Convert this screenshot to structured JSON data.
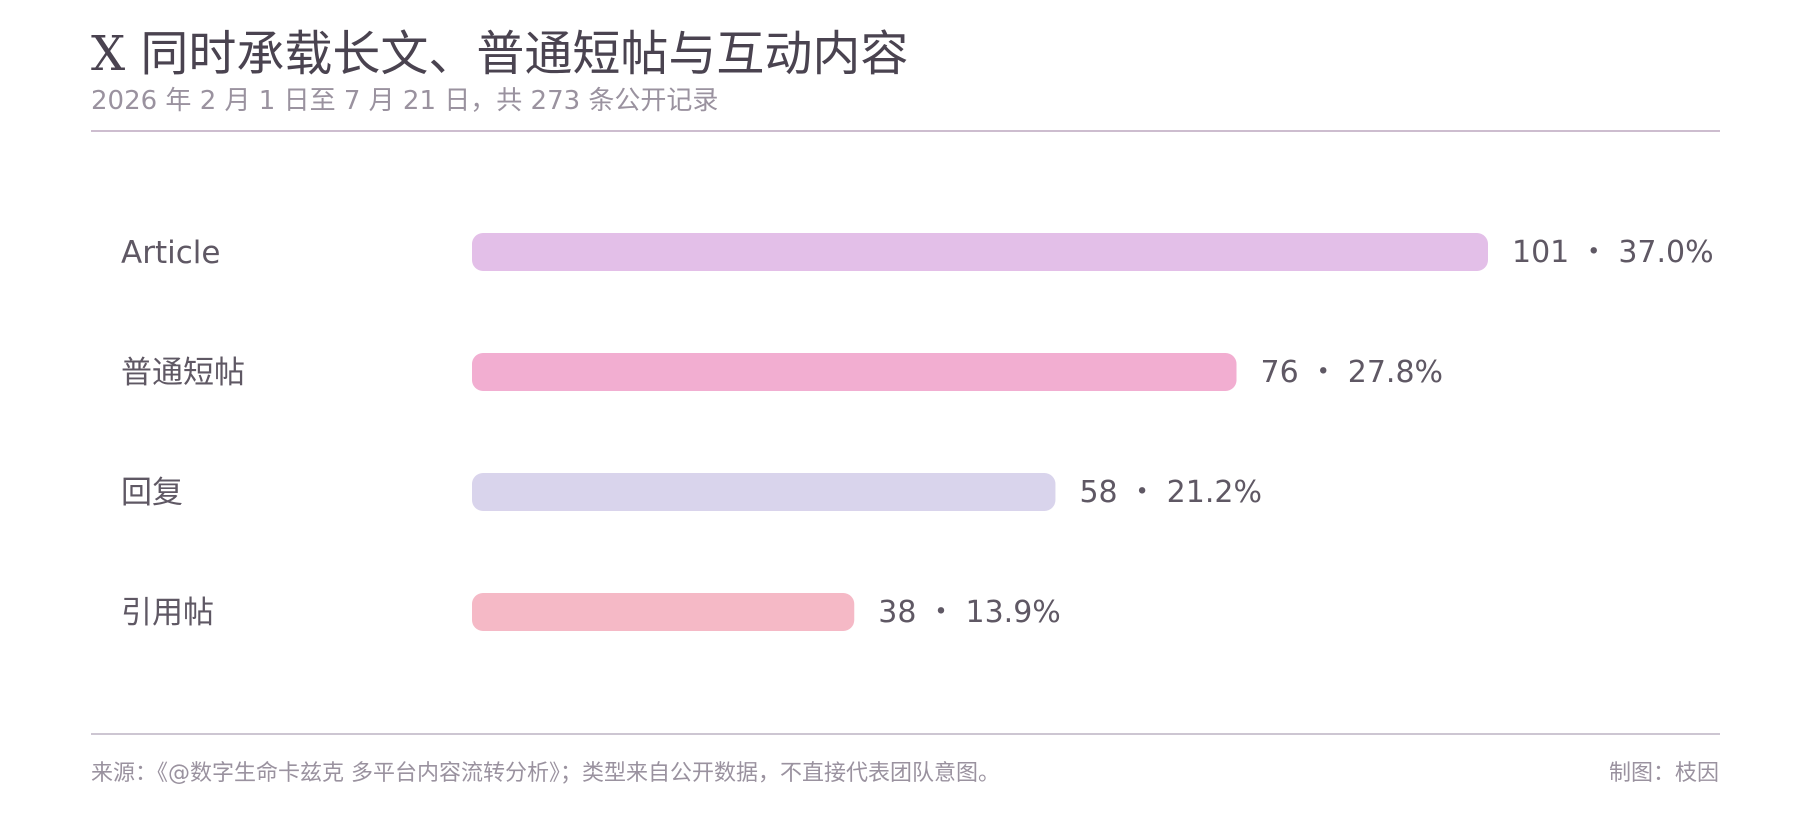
{
  "title": "X 同时承载长文、普通短帖与互动内容",
  "subtitle": "2026 年 2 月 1 日至 7 月 21 日，共 273 条公开记录",
  "footer": {
    "source": "来源：《@数字生命卡兹克 多平台内容流转分析》；类型来自公开数据，不直接代表团队意图。",
    "credit": "制图：枝因"
  },
  "chart_data": {
    "type": "bar",
    "orientation": "horizontal",
    "categories": [
      "Article",
      "普通短帖",
      "回复",
      "引用帖"
    ],
    "values": [
      101,
      76,
      58,
      38
    ],
    "value_labels": [
      "101 ・ 37.0%",
      "76 ・ 27.8%",
      "58 ・ 21.2%",
      "38 ・ 13.9%"
    ],
    "colors": [
      "#e3bfe8",
      "#f2aed1",
      "#d9d4ec",
      "#f5b9c6"
    ],
    "xlim": [
      0,
      101
    ],
    "grid": false,
    "legend": "none"
  }
}
